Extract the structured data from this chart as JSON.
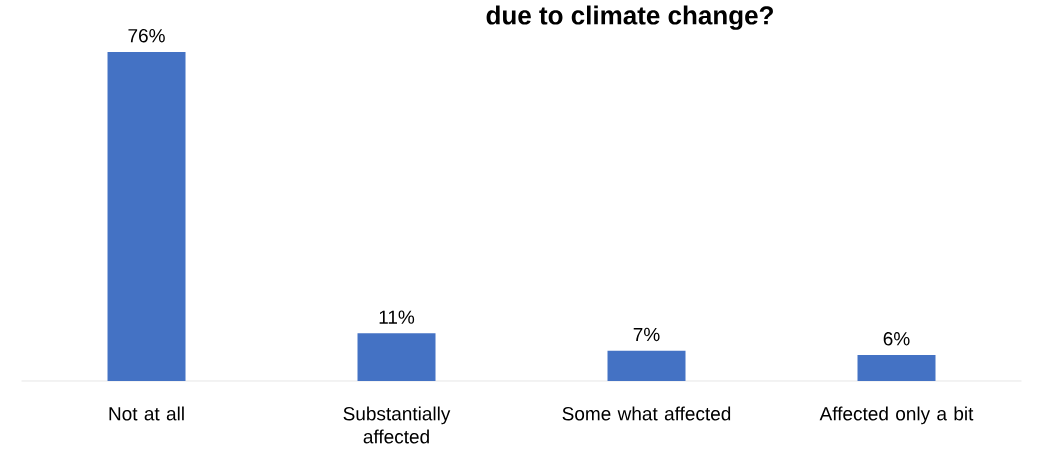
{
  "chart_data": {
    "type": "bar",
    "title": "due to climate change?",
    "categories": [
      "Not at all",
      "Substantially affected",
      "Some what affected",
      "Affected only a bit"
    ],
    "values": [
      76,
      11,
      7,
      6
    ],
    "value_labels": [
      "76%",
      "11%",
      "7%",
      "6%"
    ],
    "color": "#4472c4"
  }
}
